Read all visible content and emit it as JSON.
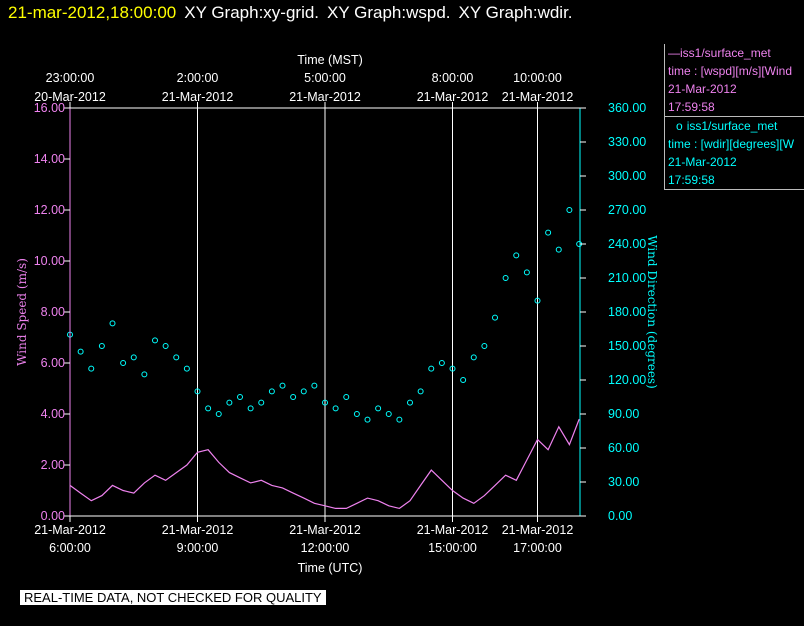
{
  "header": {
    "timestamp": "21-mar-2012,18:00:00",
    "graphs": [
      "XY Graph:xy-grid.",
      "XY Graph:wspd.",
      "XY Graph:wdir."
    ]
  },
  "legend": {
    "wspd": {
      "line1": "iss1/surface_met",
      "line2": "time : [wspd][m/s][Wind",
      "line3": "21-Mar-2012",
      "line4": "17:59:58",
      "symbol": "—",
      "color": "#ee82ee"
    },
    "wdir": {
      "line1": "iss1/surface_met",
      "line2": "time : [wdir][degrees][W",
      "line3": "21-Mar-2012",
      "line4": "17:59:58",
      "symbol": "o",
      "color": "#00ffff"
    }
  },
  "footer": {
    "quality_note": "REAL-TIME DATA, NOT CHECKED FOR QUALITY"
  },
  "chart_data": {
    "type": "line",
    "top_axis": {
      "label": "Time (MST)",
      "ticks": [
        {
          "time": "23:00:00",
          "date": "20-Mar-2012",
          "utc_hours": 6
        },
        {
          "time": "2:00:00",
          "date": "21-Mar-2012",
          "utc_hours": 9
        },
        {
          "time": "5:00:00",
          "date": "21-Mar-2012",
          "utc_hours": 12
        },
        {
          "time": "8:00:00",
          "date": "21-Mar-2012",
          "utc_hours": 15
        },
        {
          "time": "10:00:00",
          "date": "21-Mar-2012",
          "utc_hours": 17
        }
      ]
    },
    "bottom_axis": {
      "label": "Time (UTC)",
      "ticks": [
        {
          "date": "21-Mar-2012",
          "time": "6:00:00",
          "utc_hours": 6
        },
        {
          "date": "21-Mar-2012",
          "time": "9:00:00",
          "utc_hours": 9
        },
        {
          "date": "21-Mar-2012",
          "time": "12:00:00",
          "utc_hours": 12
        },
        {
          "date": "21-Mar-2012",
          "time": "15:00:00",
          "utc_hours": 15
        },
        {
          "date": "21-Mar-2012",
          "time": "17:00:00",
          "utc_hours": 17
        }
      ]
    },
    "x_range_utc_hours": [
      6,
      18
    ],
    "grid": "vertical lines at major time ticks",
    "left_axis": {
      "label": "Wind Speed (m/s)",
      "range": [
        0,
        16
      ],
      "ticks": [
        "0.00",
        "2.00",
        "4.00",
        "6.00",
        "8.00",
        "10.00",
        "12.00",
        "14.00",
        "16.00"
      ],
      "color": "#ee82ee"
    },
    "right_axis": {
      "label": "Wind Direction (degrees)",
      "range": [
        0,
        360
      ],
      "ticks": [
        "0.00",
        "30.00",
        "60.00",
        "90.00",
        "120.00",
        "150.00",
        "180.00",
        "210.00",
        "240.00",
        "270.00",
        "300.00",
        "330.00",
        "360.00"
      ],
      "color": "#00ffff"
    },
    "series": [
      {
        "name": "iss1/surface_met time : [wspd][m/s]",
        "style": "line",
        "color": "#ee82ee",
        "x": [
          6.0,
          6.25,
          6.5,
          6.75,
          7.0,
          7.25,
          7.5,
          7.75,
          8.0,
          8.25,
          8.5,
          8.75,
          9.0,
          9.25,
          9.5,
          9.75,
          10.0,
          10.25,
          10.5,
          10.75,
          11.0,
          11.25,
          11.5,
          11.75,
          12.0,
          12.25,
          12.5,
          12.75,
          13.0,
          13.25,
          13.5,
          13.75,
          14.0,
          14.25,
          14.5,
          14.75,
          15.0,
          15.25,
          15.5,
          15.75,
          16.0,
          16.25,
          16.5,
          16.75,
          17.0,
          17.25,
          17.5,
          17.75,
          17.98
        ],
        "y": [
          1.2,
          0.9,
          0.6,
          0.8,
          1.2,
          1.0,
          0.9,
          1.3,
          1.6,
          1.4,
          1.7,
          2.0,
          2.5,
          2.6,
          2.1,
          1.7,
          1.5,
          1.3,
          1.4,
          1.2,
          1.1,
          0.9,
          0.7,
          0.5,
          0.4,
          0.3,
          0.3,
          0.5,
          0.7,
          0.6,
          0.4,
          0.3,
          0.6,
          1.2,
          1.8,
          1.4,
          1.0,
          0.7,
          0.5,
          0.8,
          1.2,
          1.6,
          1.4,
          2.2,
          3.0,
          2.6,
          3.5,
          2.8,
          3.8
        ]
      },
      {
        "name": "iss1/surface_met time : [wdir][degrees]",
        "style": "markers",
        "color": "#00ffff",
        "x": [
          6.0,
          6.25,
          6.5,
          6.75,
          7.0,
          7.25,
          7.5,
          7.75,
          8.0,
          8.25,
          8.5,
          8.75,
          9.0,
          9.25,
          9.5,
          9.75,
          10.0,
          10.25,
          10.5,
          10.75,
          11.0,
          11.25,
          11.5,
          11.75,
          12.0,
          12.25,
          12.5,
          12.75,
          13.0,
          13.25,
          13.5,
          13.75,
          14.0,
          14.25,
          14.5,
          14.75,
          15.0,
          15.25,
          15.5,
          15.75,
          16.0,
          16.25,
          16.5,
          16.75,
          17.0,
          17.25,
          17.5,
          17.75,
          17.98
        ],
        "y": [
          160,
          145,
          130,
          150,
          170,
          135,
          140,
          125,
          155,
          150,
          140,
          130,
          110,
          95,
          90,
          100,
          105,
          95,
          100,
          110,
          115,
          105,
          110,
          115,
          100,
          95,
          105,
          90,
          85,
          95,
          90,
          85,
          100,
          110,
          130,
          135,
          130,
          120,
          140,
          150,
          175,
          210,
          230,
          215,
          190,
          250,
          235,
          270,
          240
        ]
      }
    ]
  }
}
